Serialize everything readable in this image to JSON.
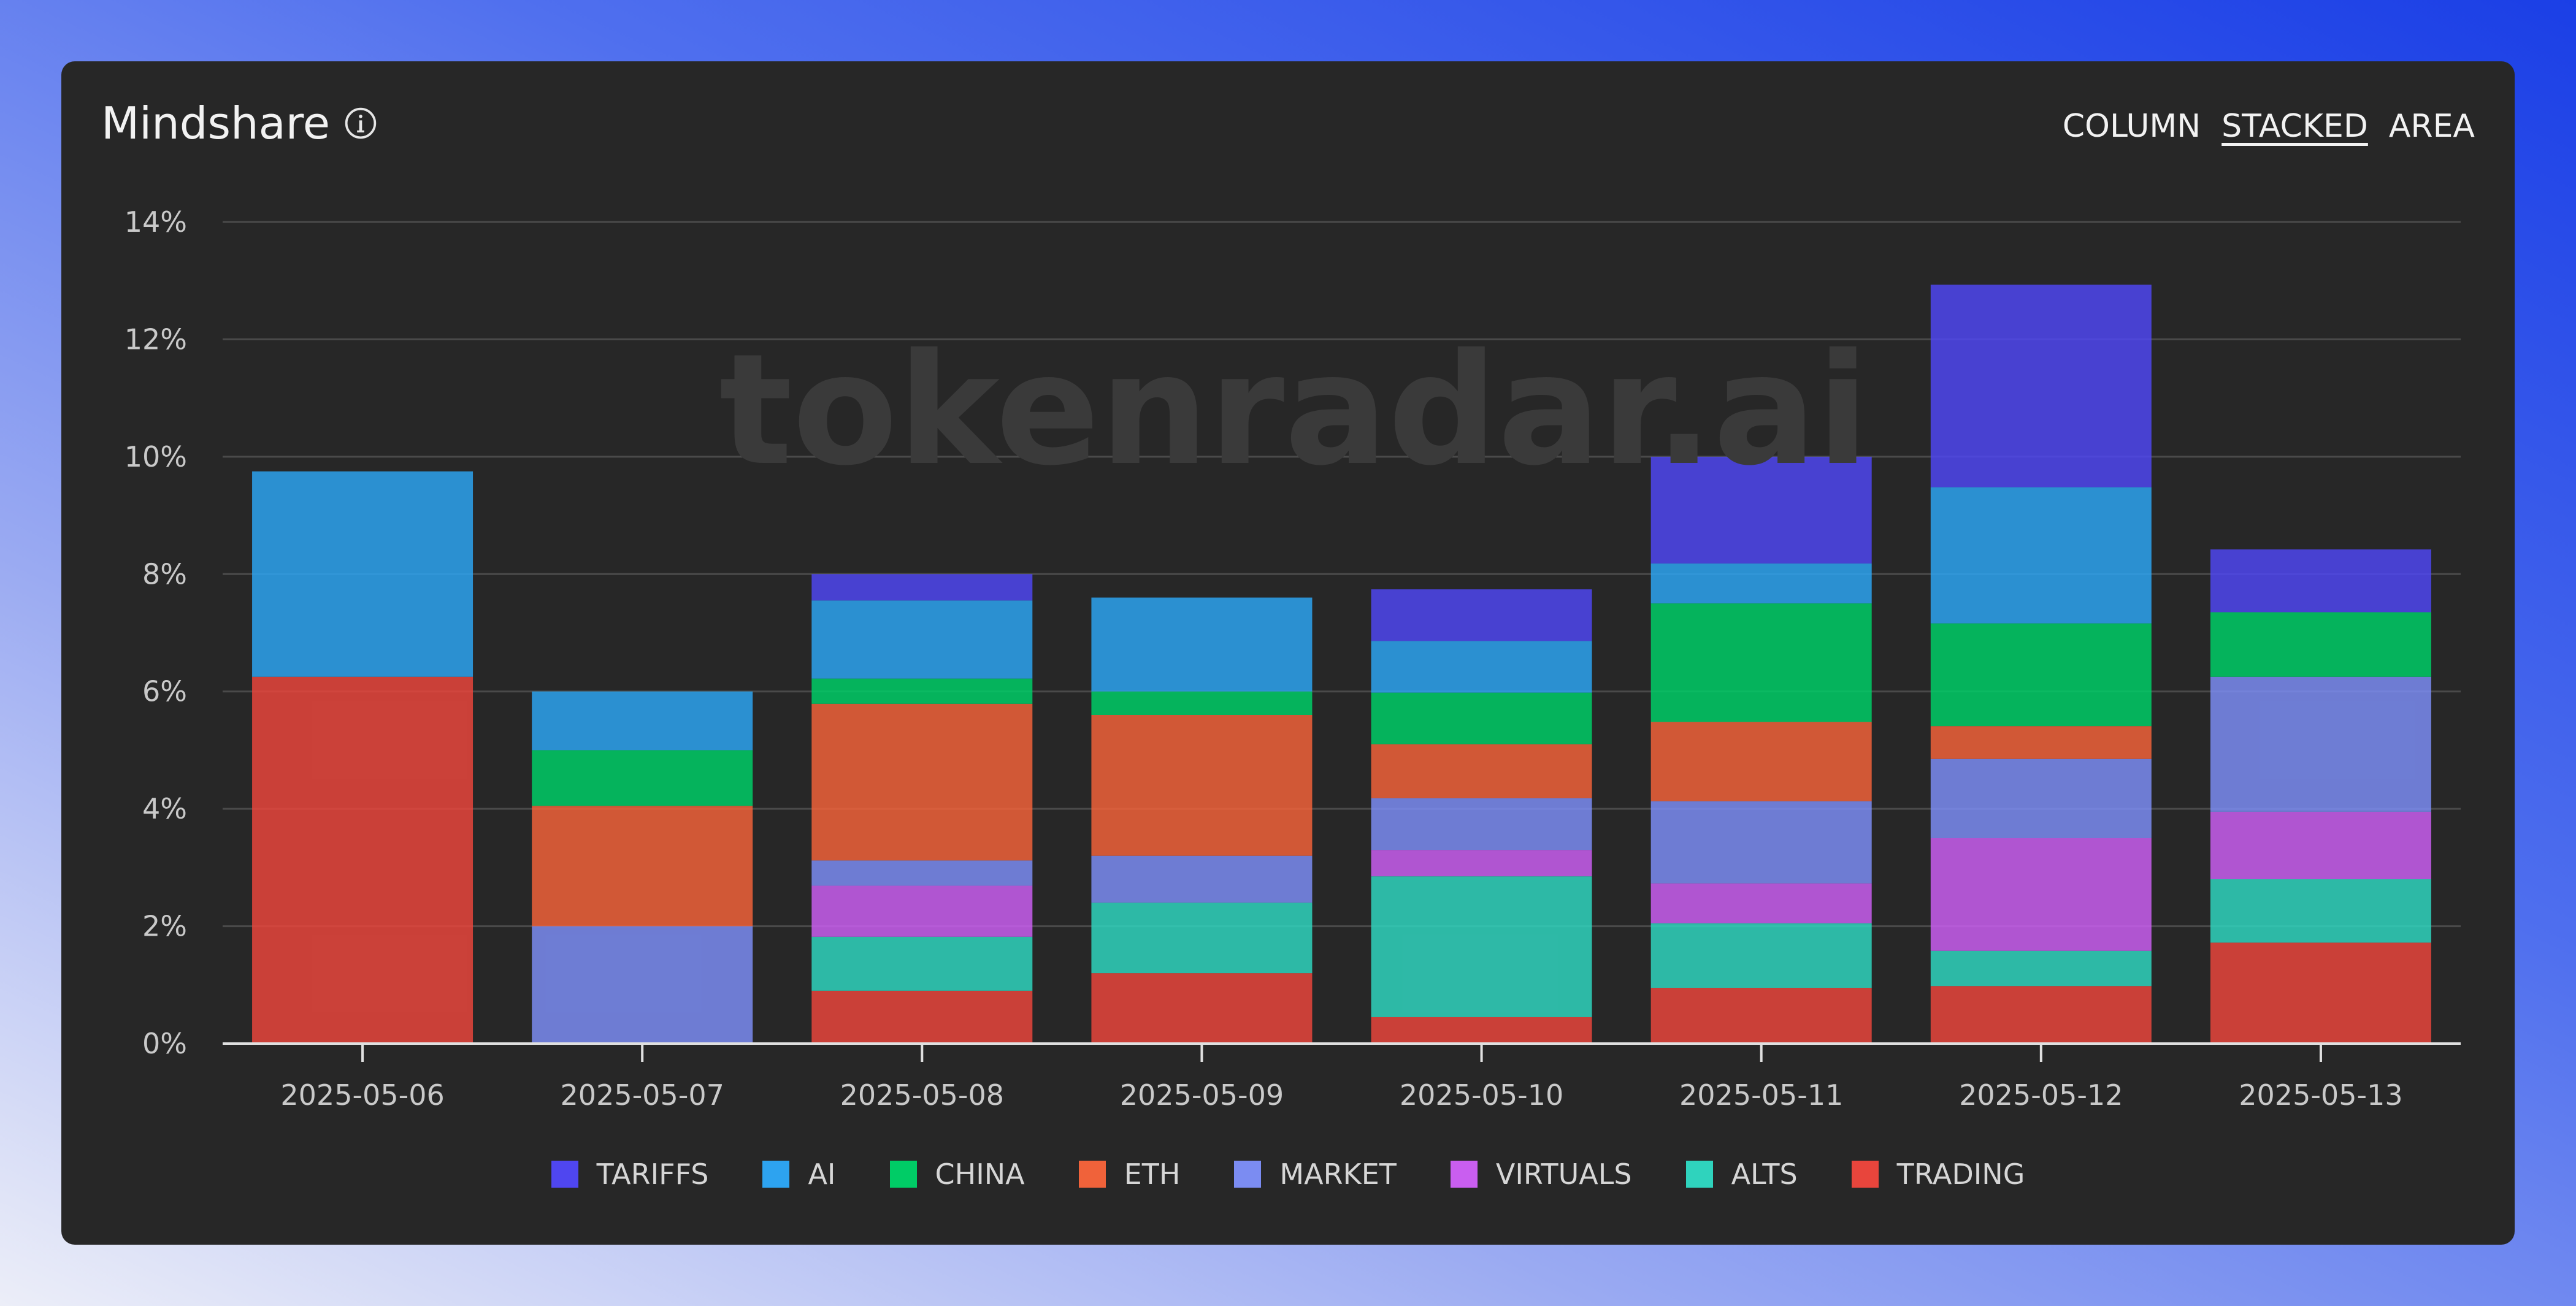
{
  "header": {
    "title": "Mindshare",
    "toggles": [
      {
        "label": "COLUMN",
        "active": false
      },
      {
        "label": "STACKED",
        "active": true
      },
      {
        "label": "AREA",
        "active": false
      }
    ]
  },
  "watermark": "tokenradar.ai",
  "chart_data": {
    "type": "bar",
    "stacked": true,
    "title": "Mindshare",
    "categories": [
      "2025-05-06",
      "2025-05-07",
      "2025-05-08",
      "2025-05-09",
      "2025-05-10",
      "2025-05-11",
      "2025-05-12",
      "2025-05-13"
    ],
    "ylim": [
      0,
      14
    ],
    "yticks": [
      "0%",
      "2%",
      "4%",
      "6%",
      "8%",
      "10%",
      "12%",
      "14%"
    ],
    "grid": true,
    "legend_position": "bottom",
    "series": [
      {
        "name": "TRADING",
        "color": "#e8453c",
        "values": [
          6.25,
          0.0,
          0.9,
          1.2,
          0.45,
          0.95,
          0.98,
          1.72
        ]
      },
      {
        "name": "ALTS",
        "color": "#2fd3bd",
        "values": [
          0.0,
          0.0,
          0.92,
          1.2,
          2.4,
          1.1,
          0.6,
          1.08
        ]
      },
      {
        "name": "VIRTUALS",
        "color": "#c95ef0",
        "values": [
          0.0,
          0.0,
          0.87,
          0.0,
          0.45,
          0.68,
          1.92,
          1.15
        ]
      },
      {
        "name": "MARKET",
        "color": "#7b8cf2",
        "values": [
          0.0,
          2.0,
          0.43,
          0.8,
          0.88,
          1.4,
          1.35,
          2.3
        ]
      },
      {
        "name": "ETH",
        "color": "#f0623a",
        "values": [
          0.0,
          2.05,
          2.67,
          2.4,
          0.92,
          1.35,
          0.56,
          0.0
        ]
      },
      {
        "name": "CHINA",
        "color": "#00cc66",
        "values": [
          0.0,
          0.95,
          0.43,
          0.4,
          0.88,
          2.02,
          1.75,
          1.1
        ]
      },
      {
        "name": "AI",
        "color": "#2da3f0",
        "values": [
          3.5,
          1.0,
          1.33,
          1.6,
          0.88,
          0.68,
          2.32,
          0.0
        ]
      },
      {
        "name": "TARIFFS",
        "color": "#4f46f0",
        "values": [
          0.0,
          0.0,
          0.45,
          0.0,
          0.88,
          1.82,
          3.45,
          1.07
        ]
      }
    ],
    "legend_order": [
      "TARIFFS",
      "AI",
      "CHINA",
      "ETH",
      "MARKET",
      "VIRTUALS",
      "ALTS",
      "TRADING"
    ]
  }
}
